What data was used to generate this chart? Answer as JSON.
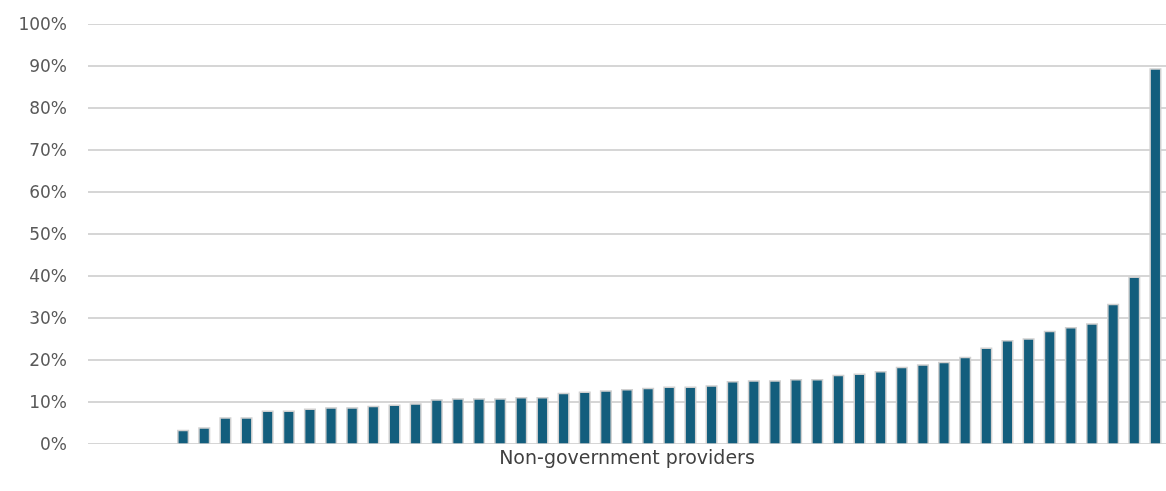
{
  "chart_data": {
    "type": "bar",
    "xlabel": "Non-government providers",
    "categories": [
      null,
      null,
      null,
      null,
      null,
      null,
      null,
      null,
      null,
      null,
      null,
      null,
      null,
      null,
      null,
      null,
      null,
      null,
      null,
      null,
      null,
      null,
      null,
      null,
      null,
      null,
      null,
      null,
      null,
      null,
      null,
      null,
      null,
      null,
      null,
      null,
      null,
      null,
      null,
      null,
      null,
      null,
      null,
      null,
      null,
      null,
      null,
      null,
      null,
      null,
      null
    ],
    "values": [
      null,
      null,
      null,
      null,
      3.2,
      3.8,
      6.2,
      6.2,
      7.8,
      7.8,
      8.3,
      8.6,
      8.6,
      8.9,
      9.2,
      9.5,
      10.5,
      10.7,
      10.7,
      10.7,
      11.0,
      11.0,
      12.0,
      12.3,
      12.6,
      12.9,
      13.2,
      13.5,
      13.5,
      13.8,
      14.8,
      15.0,
      15.0,
      15.3,
      15.3,
      16.3,
      16.6,
      17.2,
      18.2,
      18.8,
      19.4,
      20.6,
      22.8,
      24.6,
      25.0,
      26.8,
      27.7,
      28.6,
      33.2,
      39.7,
      89.3
    ],
    "color": "#135e7d",
    "ylim": [
      0,
      100
    ],
    "yticks": [
      {
        "value": 0,
        "label": "0%"
      },
      {
        "value": 10,
        "label": "10%"
      },
      {
        "value": 20,
        "label": "20%"
      },
      {
        "value": 30,
        "label": "30%"
      },
      {
        "value": 40,
        "label": "40%"
      },
      {
        "value": 50,
        "label": "50%"
      },
      {
        "value": 60,
        "label": "60%"
      },
      {
        "value": 70,
        "label": "70%"
      },
      {
        "value": 80,
        "label": "80%"
      },
      {
        "value": 90,
        "label": "90%"
      },
      {
        "value": 100,
        "label": "100%"
      }
    ],
    "grid": "y",
    "tick_labels": "y",
    "legend": false
  }
}
